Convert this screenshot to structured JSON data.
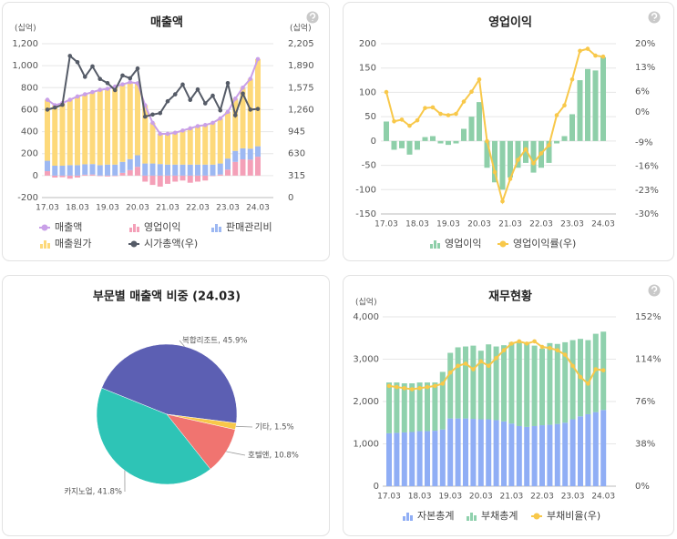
{
  "chart_data": [
    {
      "type": "combo",
      "title": "매출액",
      "unit": "(십억)",
      "y2_unit": "(십억)",
      "stacked": true,
      "grid": true,
      "categories": [
        "17.03",
        null,
        null,
        null,
        "18.03",
        null,
        null,
        null,
        "19.03",
        null,
        null,
        null,
        "20.03",
        null,
        null,
        null,
        "21.03",
        null,
        null,
        null,
        "22.03",
        null,
        null,
        null,
        "23.03",
        null,
        null,
        null,
        "24.03"
      ],
      "ylim": [
        -200,
        1200
      ],
      "yticks": [
        -200,
        0,
        200,
        400,
        600,
        800,
        {
          "value": 1000,
          "label": "1,000"
        },
        {
          "value": 1200,
          "label": "1,200"
        }
      ],
      "y2lim": [
        0,
        2205
      ],
      "y2ticks": [
        0,
        315,
        630,
        945,
        {
          "value": 1260,
          "label": "1,260"
        },
        {
          "value": 1575,
          "label": "1,575"
        },
        {
          "value": 1890,
          "label": "1,890"
        },
        {
          "value": 2205,
          "label": "2,205"
        }
      ],
      "series": [
        {
          "name": "매출액",
          "mark": "line",
          "color": "#c9a0e8",
          "values": [
            690,
            640,
            660,
            690,
            720,
            740,
            760,
            780,
            790,
            810,
            830,
            850,
            840,
            640,
            480,
            380,
            380,
            390,
            410,
            430,
            450,
            460,
            480,
            520,
            580,
            700,
            800,
            880,
            1060
          ]
        },
        {
          "name": "영업이익",
          "mark": "bar",
          "color": "#f4a0b8",
          "values": [
            40,
            -18,
            -15,
            -28,
            -18,
            8,
            10,
            -5,
            -8,
            -5,
            25,
            50,
            80,
            -55,
            -85,
            -100,
            -75,
            -55,
            -45,
            -65,
            -55,
            -45,
            -5,
            10,
            55,
            125,
            148,
            145,
            172
          ]
        },
        {
          "name": "판매관리비",
          "mark": "bar",
          "color": "#9db8f2",
          "values": [
            95,
            90,
            90,
            95,
            95,
            95,
            95,
            95,
            100,
            100,
            100,
            100,
            105,
            110,
            110,
            105,
            100,
            100,
            100,
            100,
            100,
            100,
            100,
            100,
            100,
            100,
            100,
            100,
            95
          ]
        },
        {
          "name": "매출원가",
          "mark": "bar",
          "color": "#fdd97a",
          "values": [
            555,
            550,
            570,
            595,
            625,
            637,
            655,
            685,
            690,
            710,
            705,
            700,
            655,
            530,
            370,
            275,
            280,
            290,
            310,
            330,
            350,
            360,
            380,
            410,
            425,
            475,
            552,
            635,
            793
          ]
        },
        {
          "name": "시가총액(우)",
          "mark": "line",
          "axis": "y2",
          "color": "#555b67",
          "values": [
            1260,
            1290,
            1330,
            2030,
            1940,
            1730,
            1880,
            1700,
            1640,
            1540,
            1750,
            1710,
            1850,
            1160,
            1190,
            1210,
            1380,
            1480,
            1620,
            1400,
            1550,
            1350,
            1460,
            1250,
            1640,
            1180,
            1490,
            1260,
            1270
          ]
        }
      ]
    },
    {
      "type": "combo",
      "title": "영업이익",
      "grid": true,
      "categories": [
        "17.03",
        null,
        null,
        null,
        "18.03",
        null,
        null,
        null,
        "19.03",
        null,
        null,
        null,
        "20.03",
        null,
        null,
        null,
        "21.03",
        null,
        null,
        null,
        "22.03",
        null,
        null,
        null,
        "23.03",
        null,
        null,
        null,
        "24.03"
      ],
      "ylim": [
        -150,
        200
      ],
      "yticks": [
        -150,
        -100,
        -50,
        0,
        50,
        100,
        150,
        200
      ],
      "y2lim": [
        -30,
        20
      ],
      "y2ticks": [
        {
          "value": 20,
          "label": "20%"
        },
        {
          "value": 13,
          "label": "13%"
        },
        {
          "value": 6,
          "label": "6%"
        },
        {
          "value": 0,
          "label": "0%"
        },
        {
          "value": -9,
          "label": "-9%"
        },
        {
          "value": -16,
          "label": "-16%"
        },
        {
          "value": -23,
          "label": "-23%"
        },
        {
          "value": -30,
          "label": "-30%"
        }
      ],
      "series": [
        {
          "name": "영업이익",
          "mark": "bar",
          "color": "#8ecfa9",
          "values": [
            40,
            -18,
            -15,
            -28,
            -18,
            8,
            10,
            -5,
            -8,
            -5,
            25,
            50,
            80,
            -55,
            -85,
            -100,
            -75,
            -55,
            -45,
            -65,
            -55,
            -45,
            -5,
            10,
            55,
            125,
            148,
            145,
            172
          ]
        },
        {
          "name": "영업이익률(우)",
          "mark": "line",
          "axis": "y2",
          "color": "#f8c84a",
          "values": [
            5.8,
            -2.8,
            -2.3,
            -4.1,
            -2.5,
            1.1,
            1.3,
            -0.6,
            -1,
            -0.6,
            3,
            5.9,
            9.5,
            -8.6,
            -17.7,
            -26.3,
            -19.7,
            -14.1,
            -11,
            -15.1,
            -12.2,
            -9.8,
            -1,
            1.9,
            9.5,
            17.9,
            18.5,
            16.5,
            16.2
          ]
        }
      ]
    },
    {
      "type": "pie",
      "title": "부문별 매출액 비중 (24.03)",
      "values": [
        45.9,
        1.5,
        10.8,
        41.8
      ],
      "value_labels": [
        "복합리조트, 45.9%",
        "기타, 1.5%",
        "호텔앤, 10.8%",
        "카지노업, 41.8%"
      ],
      "colors": [
        "#5c5fb3",
        "#f8c84a",
        "#f07470",
        "#2ec4b6"
      ]
    },
    {
      "type": "combo",
      "title": "재무현황",
      "unit": "(십억)",
      "stacked": true,
      "grid": true,
      "categories": [
        "17.03",
        null,
        null,
        null,
        "18.03",
        null,
        null,
        null,
        "19.03",
        null,
        null,
        null,
        "20.03",
        null,
        null,
        null,
        "21.03",
        null,
        null,
        null,
        "22.03",
        null,
        null,
        null,
        "23.03",
        null,
        null,
        null,
        "24.03"
      ],
      "ylim": [
        0,
        4000
      ],
      "yticks": [
        0,
        {
          "value": 1000,
          "label": "1,000"
        },
        {
          "value": 2000,
          "label": "2,000"
        },
        {
          "value": 3000,
          "label": "3,000"
        },
        {
          "value": 4000,
          "label": "4,000"
        }
      ],
      "y2lim": [
        0,
        152
      ],
      "y2ticks": [
        {
          "value": 0,
          "label": "0%"
        },
        {
          "value": 38,
          "label": "38%"
        },
        {
          "value": 76,
          "label": "76%"
        },
        {
          "value": 114,
          "label": "114%"
        },
        {
          "value": 152,
          "label": "152%"
        }
      ],
      "series": [
        {
          "name": "자본총계",
          "mark": "bar",
          "color": "#90aef5",
          "values": [
            1250,
            1260,
            1270,
            1280,
            1300,
            1300,
            1310,
            1340,
            1600,
            1600,
            1600,
            1590,
            1580,
            1580,
            1560,
            1530,
            1480,
            1420,
            1400,
            1420,
            1440,
            1450,
            1470,
            1500,
            1580,
            1650,
            1700,
            1750,
            1800
          ]
        },
        {
          "name": "부채총계",
          "mark": "bar",
          "color": "#8fd1ad",
          "values": [
            1200,
            1190,
            1160,
            1150,
            1150,
            1150,
            1140,
            1360,
            1550,
            1680,
            1700,
            1730,
            1620,
            1770,
            1740,
            1800,
            1920,
            1980,
            1980,
            1900,
            1810,
            1930,
            1890,
            1900,
            1870,
            1830,
            1750,
            1850,
            1850
          ]
        },
        {
          "name": "부채비율(우)",
          "mark": "line",
          "axis": "y2",
          "color": "#f8c84a",
          "values": [
            90,
            89,
            88,
            87,
            88,
            89,
            90,
            92,
            102,
            108,
            110,
            105,
            112,
            108,
            115,
            122,
            128,
            130,
            128,
            130,
            125,
            124,
            122,
            118,
            108,
            98,
            92,
            105,
            104
          ]
        }
      ]
    }
  ]
}
